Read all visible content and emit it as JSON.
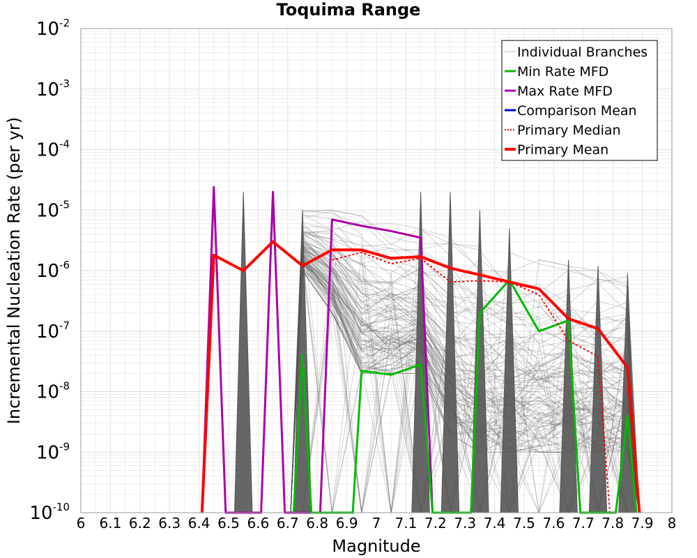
{
  "chart_data": {
    "type": "line",
    "title": "Toquima Range",
    "xlabel": "Magnitude",
    "ylabel": "Incremental Nucleation Rate (per yr)",
    "xlim": [
      6,
      8
    ],
    "ylim": [
      1e-10,
      0.01
    ],
    "yscale": "log",
    "grid": true,
    "legend_position": "top-right",
    "x_ticks": [
      "6",
      "6.1",
      "6.2",
      "6.3",
      "6.4",
      "6.5",
      "6.6",
      "6.7",
      "6.8",
      "6.9",
      "7",
      "7.1",
      "7.2",
      "7.3",
      "7.4",
      "7.5",
      "7.6",
      "7.7",
      "7.8",
      "7.9",
      "8"
    ],
    "y_ticks": [
      {
        "base": "10",
        "exp": "-10"
      },
      {
        "base": "10",
        "exp": "-9"
      },
      {
        "base": "10",
        "exp": "-8"
      },
      {
        "base": "10",
        "exp": "-7"
      },
      {
        "base": "10",
        "exp": "-6"
      },
      {
        "base": "10",
        "exp": "-5"
      },
      {
        "base": "10",
        "exp": "-4"
      },
      {
        "base": "10",
        "exp": "-3"
      },
      {
        "base": "10",
        "exp": "-2"
      }
    ],
    "legend": [
      {
        "label": "Individual Branches",
        "color": "#bbbbbb",
        "style": "thin"
      },
      {
        "label": "Min Rate MFD",
        "color": "#00bb00",
        "style": "solid"
      },
      {
        "label": "Max Rate MFD",
        "color": "#aa00aa",
        "style": "solid"
      },
      {
        "label": "Comparison Mean",
        "color": "#0000dd",
        "style": "solid"
      },
      {
        "label": " Primary Median",
        "color": "#ff0000",
        "style": "dotted"
      },
      {
        "label": "Primary Mean",
        "color": "#ff0000",
        "style": "thick"
      }
    ],
    "branch_envelope": {
      "name": "Individual Branches",
      "color": "#555555",
      "x": [
        6.75,
        6.85,
        6.95,
        7.05,
        7.15,
        7.25,
        7.35,
        7.45,
        7.55,
        7.65,
        7.75,
        7.85
      ],
      "upper": [
        1e-05,
        1e-05,
        8e-06,
        6e-06,
        5e-06,
        3.5e-06,
        2.5e-06,
        2e-06,
        1.5e-06,
        1.2e-06,
        1e-06,
        8e-07
      ],
      "lower": [
        1e-06,
        2e-07,
        2e-08,
        2e-08,
        2e-08,
        2e-09,
        1e-09,
        1e-09,
        1e-09,
        1e-09,
        1e-09,
        1e-09
      ],
      "spikes": [
        {
          "x": 6.55,
          "y": 2e-05
        },
        {
          "x": 6.75,
          "y": 1e-05
        },
        {
          "x": 7.15,
          "y": 2e-05
        },
        {
          "x": 7.25,
          "y": 2e-05
        },
        {
          "x": 7.35,
          "y": 1e-05
        },
        {
          "x": 7.45,
          "y": 5e-06
        },
        {
          "x": 7.65,
          "y": 1.5e-06
        },
        {
          "x": 7.75,
          "y": 1.2e-06
        },
        {
          "x": 7.85,
          "y": 9e-07
        }
      ]
    },
    "series": [
      {
        "name": "Max Rate MFD",
        "color": "#aa00aa",
        "width": 3,
        "points": [
          [
            6.41,
            1e-10
          ],
          [
            6.45,
            2.4e-05
          ],
          [
            6.49,
            1e-10
          ],
          [
            6.61,
            1e-10
          ],
          [
            6.65,
            2e-05
          ],
          [
            6.69,
            1e-10
          ],
          [
            6.81,
            1e-10
          ],
          [
            6.85,
            7e-06
          ],
          [
            6.95,
            5.5e-06
          ],
          [
            7.05,
            4.5e-06
          ],
          [
            7.15,
            3.5e-06
          ],
          [
            7.19,
            1e-10
          ]
        ]
      },
      {
        "name": "Min Rate MFD",
        "color": "#00bb00",
        "width": 3,
        "points": [
          [
            6.72,
            1e-10
          ],
          [
            6.75,
            4e-08
          ],
          [
            6.78,
            1e-10
          ],
          [
            6.92,
            1e-10
          ],
          [
            6.95,
            2.2e-08
          ],
          [
            7.05,
            1.9e-08
          ],
          [
            7.15,
            2.8e-08
          ],
          [
            7.19,
            1e-10
          ],
          [
            7.32,
            1e-10
          ],
          [
            7.35,
            2e-07
          ],
          [
            7.45,
            7e-07
          ],
          [
            7.55,
            1e-07
          ],
          [
            7.65,
            1.5e-07
          ],
          [
            7.69,
            1e-10
          ],
          [
            7.81,
            1e-10
          ],
          [
            7.85,
            4e-09
          ],
          [
            7.88,
            1e-10
          ]
        ]
      },
      {
        "name": " Primary Median",
        "color": "#ff0000",
        "width": 2,
        "dash": "3,3",
        "points": [
          [
            6.85,
            1.5e-06
          ],
          [
            6.95,
            2e-06
          ],
          [
            7.05,
            1.3e-06
          ],
          [
            7.15,
            1.6e-06
          ],
          [
            7.25,
            6.5e-07
          ],
          [
            7.35,
            6.8e-07
          ],
          [
            7.45,
            6.5e-07
          ],
          [
            7.55,
            4e-07
          ],
          [
            7.65,
            7e-08
          ],
          [
            7.75,
            3.8e-08
          ],
          [
            7.79,
            1e-10
          ]
        ]
      },
      {
        "name": "Primary Mean",
        "color": "#ff0000",
        "width": 4,
        "points": [
          [
            6.41,
            1e-10
          ],
          [
            6.45,
            1.8e-06
          ],
          [
            6.55,
            1e-06
          ],
          [
            6.65,
            3e-06
          ],
          [
            6.75,
            1.2e-06
          ],
          [
            6.85,
            2.2e-06
          ],
          [
            6.95,
            2.2e-06
          ],
          [
            7.05,
            1.6e-06
          ],
          [
            7.15,
            1.7e-06
          ],
          [
            7.25,
            1.1e-06
          ],
          [
            7.35,
            8.5e-07
          ],
          [
            7.45,
            6.5e-07
          ],
          [
            7.55,
            5e-07
          ],
          [
            7.65,
            1.6e-07
          ],
          [
            7.75,
            1.1e-07
          ],
          [
            7.85,
            2.5e-08
          ],
          [
            7.89,
            1e-10
          ]
        ]
      }
    ]
  }
}
